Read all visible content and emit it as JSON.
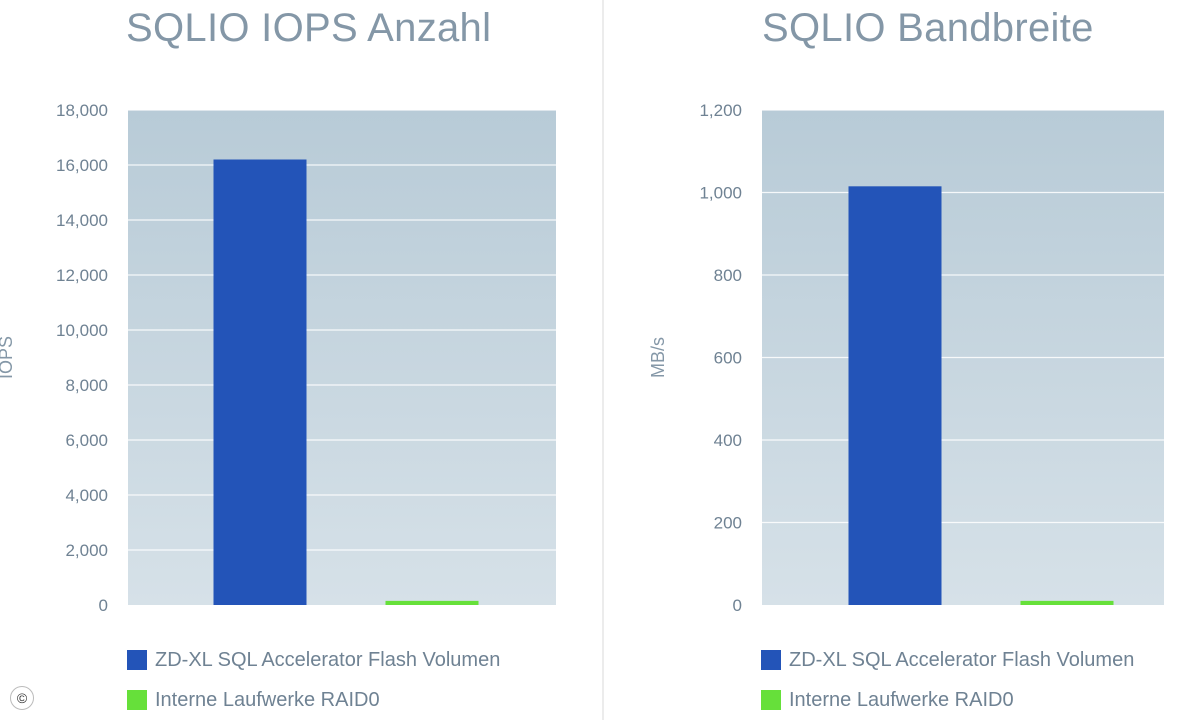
{
  "chart_data": [
    {
      "type": "bar",
      "title": "SQLIO IOPS Anzahl",
      "ylabel": "IOPS",
      "xlabel": "",
      "ylim": [
        0,
        18000
      ],
      "yticks": [
        "0",
        "2,000",
        "4,000",
        "6,000",
        "8,000",
        "10,000",
        "12,000",
        "14,000",
        "16,000",
        "18,000"
      ],
      "ytick_values": [
        0,
        2000,
        4000,
        6000,
        8000,
        10000,
        12000,
        14000,
        16000,
        18000
      ],
      "categories": [
        "ZD-XL SQL Accelerator Flash Volumen",
        "Interne Laufwerke RAID0"
      ],
      "values": [
        16200,
        150
      ],
      "colors": [
        "#2354b8",
        "#66e03a"
      ],
      "grid": true,
      "legend_position": "bottom"
    },
    {
      "type": "bar",
      "title": "SQLIO Bandbreite",
      "ylabel": "MB/s",
      "xlabel": "",
      "ylim": [
        0,
        1200
      ],
      "yticks": [
        "0",
        "200",
        "400",
        "600",
        "800",
        "1,000",
        "1,200"
      ],
      "ytick_values": [
        0,
        200,
        400,
        600,
        800,
        1000,
        1200
      ],
      "categories": [
        "ZD-XL SQL Accelerator Flash Volumen",
        "Interne Laufwerke RAID0"
      ],
      "values": [
        1015,
        10
      ],
      "colors": [
        "#2354b8",
        "#66e03a"
      ],
      "grid": true,
      "legend_position": "bottom"
    }
  ],
  "background_color": "#c9d7e0",
  "copyright_symbol": "©"
}
